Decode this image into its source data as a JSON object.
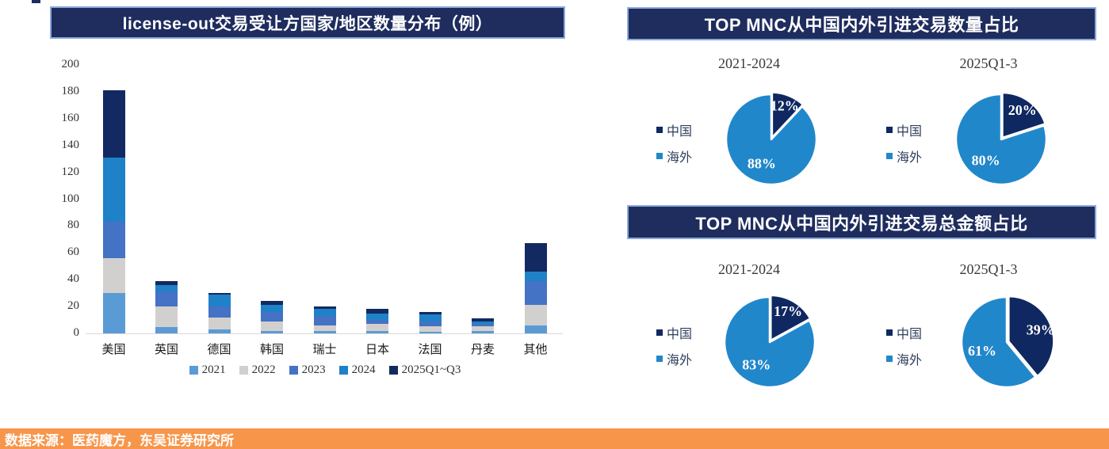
{
  "panels": {
    "pies_top_title": "TOP MNC从中国内外引进交易数量占比",
    "pies_bottom_title": "TOP MNC从中国内外引进交易总金额占比"
  },
  "footer": {
    "text": "数据来源：医药魔方，东吴证券研究所"
  },
  "colors": {
    "panel_navy": "#1E2C5E",
    "panel_border": "#8EA9DB",
    "series": [
      "#5B9BD5",
      "#D1D0CE",
      "#4472C4",
      "#1F81C7",
      "#122A61"
    ],
    "pie_china": "#0F2861",
    "pie_overseas": "#2187CB",
    "axis_line": "#D9D9D9",
    "axis_text": "#333333",
    "footer_orange": "#F7964B",
    "label_white": "#FFFFFF"
  },
  "chart_data": [
    {
      "type": "bar",
      "stacked": true,
      "title": "license-out交易受让方国家/地区数量分布（例）",
      "categories": [
        "美国",
        "英国",
        "德国",
        "韩国",
        "瑞士",
        "日本",
        "法国",
        "丹麦",
        "其他"
      ],
      "series": [
        {
          "name": "2021",
          "values": [
            30,
            5,
            3,
            2,
            2,
            2,
            1,
            2,
            6
          ]
        },
        {
          "name": "2022",
          "values": [
            26,
            15,
            9,
            7,
            4,
            5,
            4,
            3,
            15
          ]
        },
        {
          "name": "2023",
          "values": [
            27,
            11,
            8,
            7,
            7,
            3,
            4,
            2,
            18
          ]
        },
        {
          "name": "2024",
          "values": [
            48,
            5,
            9,
            5,
            5,
            5,
            5,
            2,
            7
          ]
        },
        {
          "name": "2025Q1~Q3",
          "values": [
            50,
            3,
            1,
            3,
            2,
            3,
            2,
            2,
            21
          ]
        }
      ],
      "totals": [
        181,
        39,
        30,
        24,
        20,
        18,
        16,
        11,
        67
      ],
      "ylim": [
        0,
        200
      ],
      "ytick_step": 20,
      "legend_position": "bottom",
      "grid": false
    },
    {
      "type": "pie",
      "panel": "TOP MNC从中国内外引进交易数量占比",
      "title": "2021-2024",
      "labels": [
        "中国",
        "海外"
      ],
      "values": [
        12,
        88
      ],
      "data_labels": [
        "12%",
        "88%"
      ],
      "legend_position": "left"
    },
    {
      "type": "pie",
      "panel": "TOP MNC从中国内外引进交易数量占比",
      "title": "2025Q1-3",
      "labels": [
        "中国",
        "海外"
      ],
      "values": [
        20,
        80
      ],
      "data_labels": [
        "20%",
        "80%"
      ],
      "legend_position": "left"
    },
    {
      "type": "pie",
      "panel": "TOP MNC从中国内外引进交易总金额占比",
      "title": "2021-2024",
      "labels": [
        "中国",
        "海外"
      ],
      "values": [
        17,
        83
      ],
      "data_labels": [
        "17%",
        "83%"
      ],
      "legend_position": "left"
    },
    {
      "type": "pie",
      "panel": "TOP MNC从中国内外引进交易总金额占比",
      "title": "2025Q1-3",
      "labels": [
        "中国",
        "海外"
      ],
      "values": [
        39,
        61
      ],
      "data_labels": [
        "39%",
        "61%"
      ],
      "legend_position": "left"
    }
  ]
}
